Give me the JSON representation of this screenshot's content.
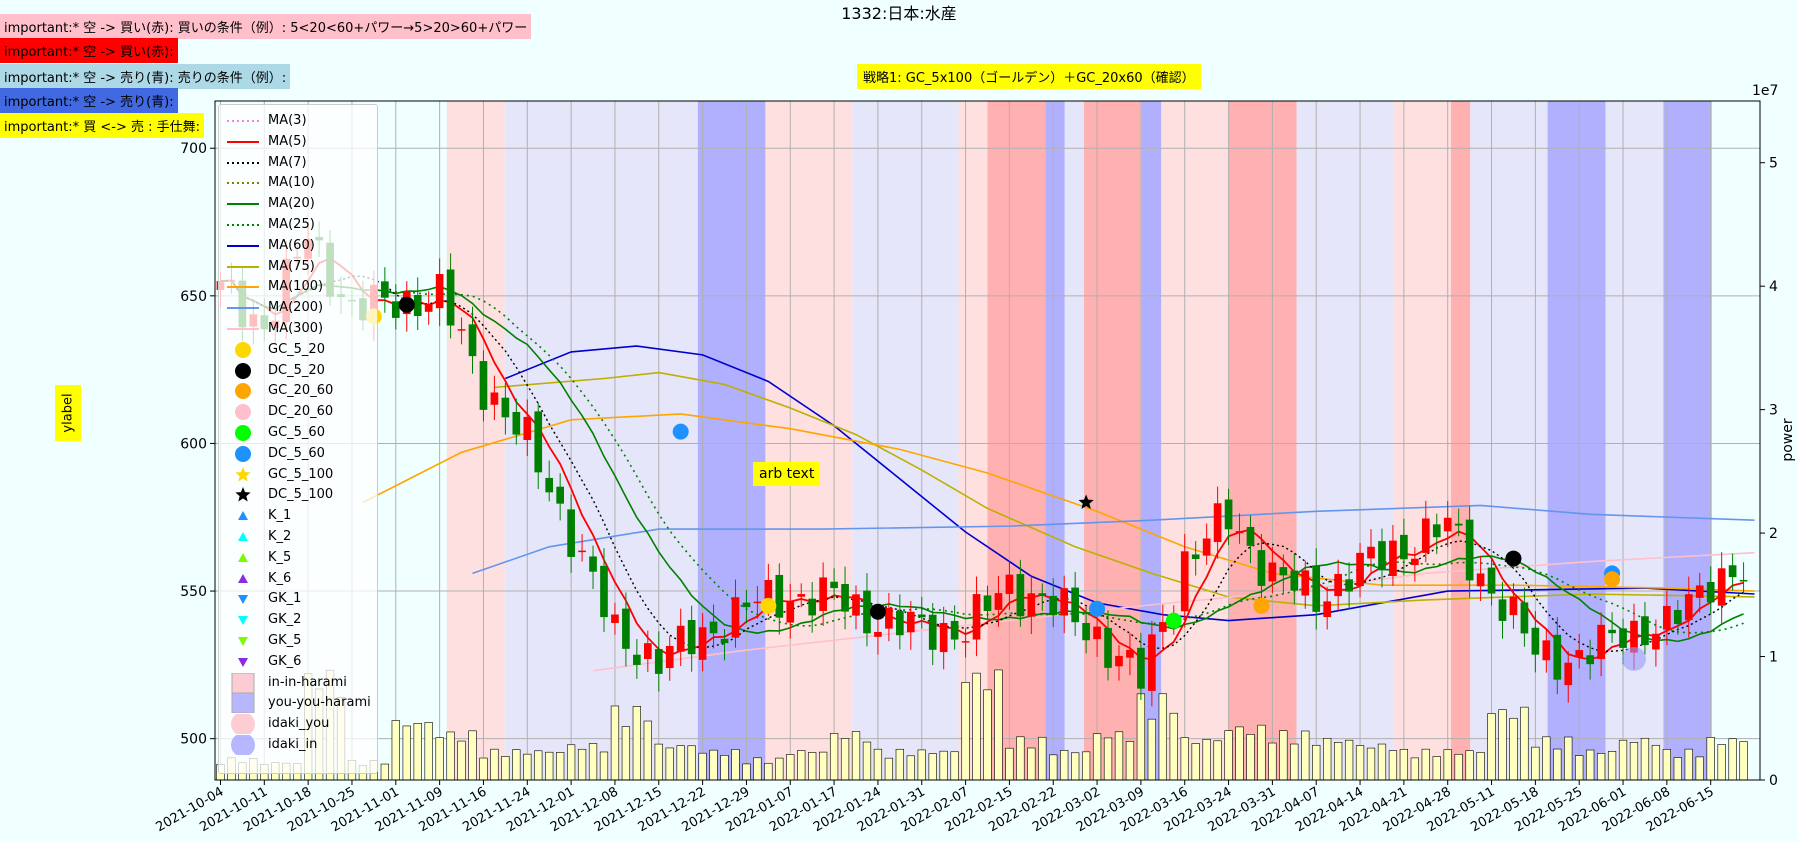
{
  "title": "1332:日本:水産",
  "notes": [
    {
      "text": "important:* 空 -> 買い(赤): 買いの条件（例）: 5<20<60+パワー→5>20>60+パワー",
      "color": "#ffc0cb"
    },
    {
      "text": "important:* 空 -> 買い(赤):",
      "color": "#ff0000"
    },
    {
      "text": "important:* 空 -> 売り(青): 売りの条件（例）:",
      "color": "#add8e6"
    },
    {
      "text": "important:* 空 -> 売り(青):",
      "color": "#4169e1"
    },
    {
      "text": "important:* 買 <-> 売 : 手仕舞:",
      "color": "#ffff00"
    }
  ],
  "strategy_label": "戦略1: GC_5x100（ゴールデン）＋GC_20x60（確認）",
  "arb_text": "arb text",
  "chart_data": {
    "type": "candlestick",
    "ylabel": "ylabel",
    "y2label": "power",
    "y2_exponent": "1e7",
    "ylim": [
      486,
      716
    ],
    "y_ticks": [
      500,
      550,
      600,
      650,
      700
    ],
    "y2lim": [
      0,
      5.5
    ],
    "y2_ticks": [
      0,
      1,
      2,
      3,
      4,
      5
    ],
    "x_dates": [
      "2021-10-04",
      "2021-10-11",
      "2021-10-18",
      "2021-10-25",
      "2021-11-01",
      "2021-11-09",
      "2021-11-16",
      "2021-11-24",
      "2021-12-01",
      "2021-12-08",
      "2021-12-15",
      "2021-12-22",
      "2021-12-29",
      "2022-01-07",
      "2022-01-17",
      "2022-01-24",
      "2022-01-31",
      "2022-02-07",
      "2022-02-15",
      "2022-02-22",
      "2022-03-02",
      "2022-03-09",
      "2022-03-16",
      "2022-03-24",
      "2022-03-31",
      "2022-04-07",
      "2022-04-14",
      "2022-04-21",
      "2022-04-28",
      "2022-05-11",
      "2022-05-18",
      "2022-05-25",
      "2022-06-01",
      "2022-06-08",
      "2022-06-15"
    ],
    "weekly_close": [
      652,
      640,
      670,
      645,
      648,
      650,
      620,
      600,
      570,
      535,
      527,
      535,
      545,
      548,
      548,
      540,
      537,
      537,
      552,
      545,
      535,
      520,
      560,
      575,
      555,
      548,
      558,
      565,
      572,
      550,
      530,
      526,
      537,
      537,
      555
    ],
    "ma_series": {
      "MA(60)": [
        [
          26,
          622
        ],
        [
          32,
          631
        ],
        [
          38,
          633
        ],
        [
          44,
          630
        ],
        [
          50,
          621
        ],
        [
          56,
          606
        ],
        [
          62,
          588
        ],
        [
          68,
          570
        ],
        [
          74,
          555
        ],
        [
          80,
          546
        ],
        [
          86,
          542
        ],
        [
          92,
          540
        ],
        [
          100,
          542
        ],
        [
          112,
          550
        ],
        [
          130,
          551
        ],
        [
          140,
          549
        ]
      ],
      "MA(75)": [
        [
          25,
          619
        ],
        [
          35,
          622
        ],
        [
          40,
          624
        ],
        [
          46,
          620
        ],
        [
          52,
          612
        ],
        [
          58,
          603
        ],
        [
          64,
          591
        ],
        [
          70,
          578
        ],
        [
          78,
          565
        ],
        [
          85,
          556
        ],
        [
          92,
          548
        ],
        [
          100,
          545
        ],
        [
          110,
          547
        ],
        [
          125,
          549
        ],
        [
          140,
          548
        ]
      ],
      "MA(100)": [
        [
          13,
          580
        ],
        [
          22,
          597
        ],
        [
          32,
          608
        ],
        [
          42,
          610
        ],
        [
          52,
          605
        ],
        [
          62,
          598
        ],
        [
          70,
          590
        ],
        [
          80,
          577
        ],
        [
          88,
          565
        ],
        [
          96,
          556
        ],
        [
          106,
          552
        ],
        [
          118,
          552
        ],
        [
          132,
          551
        ],
        [
          140,
          550
        ]
      ],
      "MA(200)": [
        [
          23,
          556
        ],
        [
          30,
          565
        ],
        [
          40,
          571
        ],
        [
          55,
          571
        ],
        [
          72,
          572
        ],
        [
          85,
          574
        ],
        [
          100,
          577
        ],
        [
          115,
          579
        ],
        [
          125,
          576
        ],
        [
          140,
          574
        ]
      ],
      "MA(300)": [
        [
          34,
          523
        ],
        [
          48,
          530
        ],
        [
          60,
          535
        ],
        [
          72,
          540
        ],
        [
          84,
          545
        ],
        [
          98,
          550
        ],
        [
          110,
          556
        ],
        [
          125,
          560
        ],
        [
          140,
          563
        ]
      ]
    },
    "volume_scale_max": 55000000.0,
    "volume_weekly": [
      1800000.0,
      1500000.0,
      9000000.0,
      1600000.0,
      5000000.0,
      4000000.0,
      2500000.0,
      2500000.0,
      3000000.0,
      6000000.0,
      3000000.0,
      2500000.0,
      1800000.0,
      2500000.0,
      4000000.0,
      2500000.0,
      2500000.0,
      9000000.0,
      3500000.0,
      2500000.0,
      4000000.0,
      7000000.0,
      3500000.0,
      4500000.0,
      4000000.0,
      3500000.0,
      3000000.0,
      2500000.0,
      2500000.0,
      6000000.0,
      3500000.0,
      2500000.0,
      3500000.0,
      2500000.0,
      3500000.0
    ],
    "legend": [
      {
        "label": "MA(3)",
        "kind": "line",
        "color": "#ee82ee",
        "dash": "dot"
      },
      {
        "label": "MA(5)",
        "kind": "line",
        "color": "#ff0000",
        "dash": "solid"
      },
      {
        "label": "MA(7)",
        "kind": "line",
        "color": "#000000",
        "dash": "dot"
      },
      {
        "label": "MA(10)",
        "kind": "line",
        "color": "#808000",
        "dash": "dot"
      },
      {
        "label": "MA(20)",
        "kind": "line",
        "color": "#008000",
        "dash": "solid"
      },
      {
        "label": "MA(25)",
        "kind": "line",
        "color": "#008000",
        "dash": "dot"
      },
      {
        "label": "MA(60)",
        "kind": "line",
        "color": "#0000cd",
        "dash": "solid"
      },
      {
        "label": "MA(75)",
        "kind": "line",
        "color": "#bdb000",
        "dash": "solid"
      },
      {
        "label": "MA(100)",
        "kind": "line",
        "color": "#ffa500",
        "dash": "solid"
      },
      {
        "label": "MA(200)",
        "kind": "line",
        "color": "#6495ed",
        "dash": "solid"
      },
      {
        "label": "MA(300)",
        "kind": "line",
        "color": "#ffc0cb",
        "dash": "solid"
      },
      {
        "label": "GC_5_20",
        "kind": "circle",
        "color": "#ffd700"
      },
      {
        "label": "DC_5_20",
        "kind": "circle",
        "color": "#000000"
      },
      {
        "label": "GC_20_60",
        "kind": "circle",
        "color": "#ffa500"
      },
      {
        "label": "DC_20_60",
        "kind": "circle",
        "color": "#ffc0cb"
      },
      {
        "label": "GC_5_60",
        "kind": "circle",
        "color": "#00ff00"
      },
      {
        "label": "DC_5_60",
        "kind": "circle",
        "color": "#1e90ff"
      },
      {
        "label": "GC_5_100",
        "kind": "star",
        "color": "#ffd700"
      },
      {
        "label": "DC_5_100",
        "kind": "star",
        "color": "#000000"
      },
      {
        "label": "K_1",
        "kind": "tri-up",
        "color": "#1e90ff"
      },
      {
        "label": "K_2",
        "kind": "tri-up",
        "color": "#00ffff"
      },
      {
        "label": "K_5",
        "kind": "tri-up",
        "color": "#7cfc00"
      },
      {
        "label": "K_6",
        "kind": "tri-up",
        "color": "#8a2be2"
      },
      {
        "label": "GK_1",
        "kind": "tri-down",
        "color": "#1e90ff"
      },
      {
        "label": "GK_2",
        "kind": "tri-down",
        "color": "#00ffff"
      },
      {
        "label": "GK_5",
        "kind": "tri-down",
        "color": "#7cfc00"
      },
      {
        "label": "GK_6",
        "kind": "tri-down",
        "color": "#8a2be2"
      },
      {
        "label": "in-in-harami",
        "kind": "square",
        "color": "#ffb6c1"
      },
      {
        "label": "you-you-harami",
        "kind": "square",
        "color": "#9999ff"
      },
      {
        "label": "idaki_you",
        "kind": "bigcircle",
        "color": "#ffb6c1"
      },
      {
        "label": "idaki_in",
        "kind": "bigcircle",
        "color": "#9999ff"
      }
    ],
    "colors": {
      "up": "#ff0000",
      "down": "#008000",
      "bg": "#f0ffff",
      "pink": "#ffe0e0",
      "lavender": "#e6e6fa",
      "red_band": "#ffb0b0",
      "blue_band": "#b0b0ff",
      "grid": "#b0b0b0",
      "volume": "#ffffc0"
    }
  }
}
